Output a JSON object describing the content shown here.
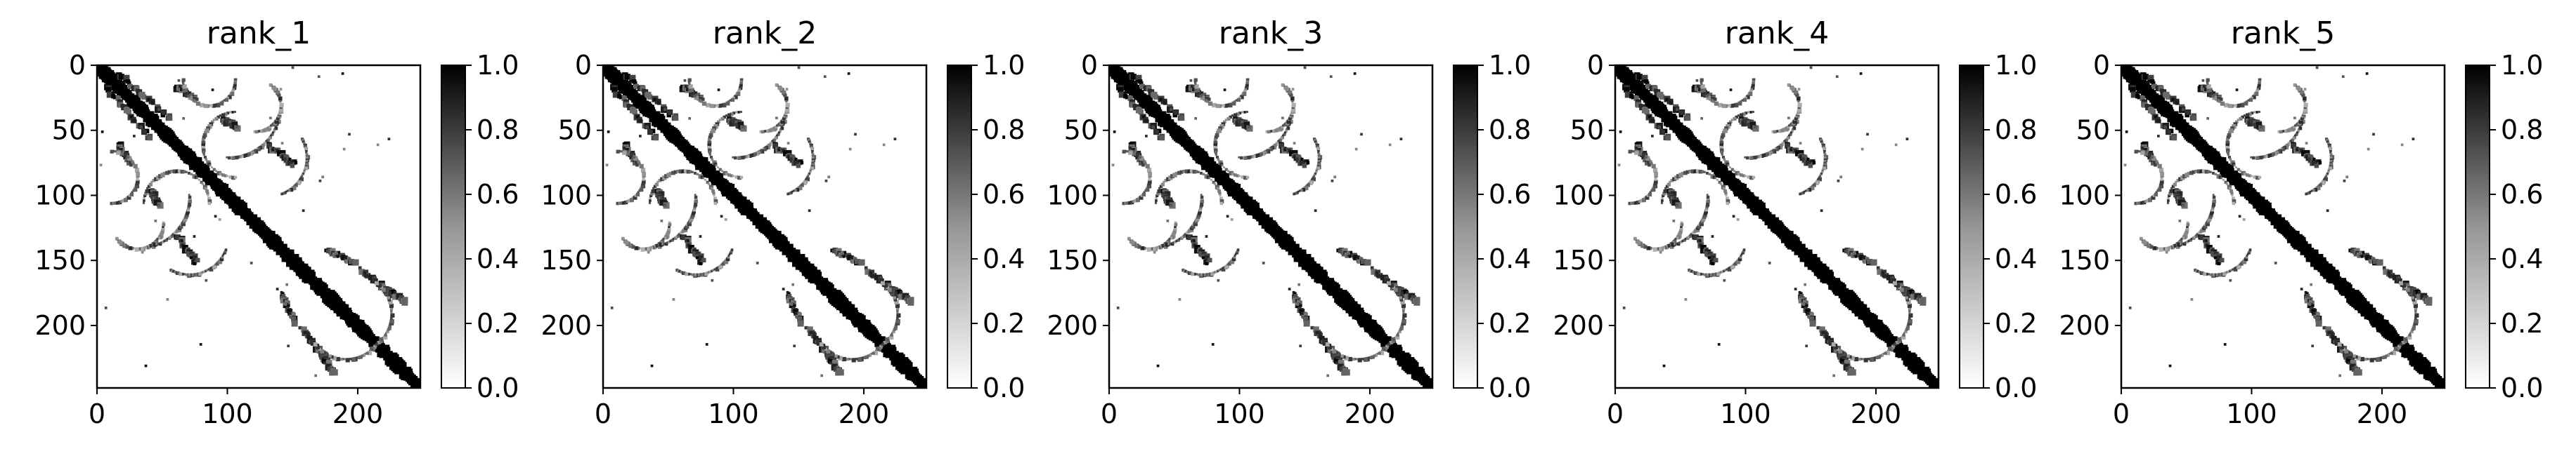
{
  "chart_data": [
    {
      "type": "heatmap",
      "title": "rank_1",
      "x_range": [
        0,
        248
      ],
      "y_range": [
        0,
        248
      ],
      "x_ticks": [
        "0",
        "100",
        "200"
      ],
      "y_ticks": [
        "0",
        "50",
        "100",
        "150",
        "200"
      ],
      "colorbar": {
        "range": [
          0,
          1
        ],
        "ticks": [
          "0.0",
          "0.2",
          "0.4",
          "0.6",
          "0.8",
          "1.0"
        ],
        "colormap": "Greys"
      }
    },
    {
      "type": "heatmap",
      "title": "rank_2",
      "x_range": [
        0,
        248
      ],
      "y_range": [
        0,
        248
      ],
      "x_ticks": [
        "0",
        "100",
        "200"
      ],
      "y_ticks": [
        "0",
        "50",
        "100",
        "150",
        "200"
      ],
      "colorbar": {
        "range": [
          0,
          1
        ],
        "ticks": [
          "0.0",
          "0.2",
          "0.4",
          "0.6",
          "0.8",
          "1.0"
        ],
        "colormap": "Greys"
      }
    },
    {
      "type": "heatmap",
      "title": "rank_3",
      "x_range": [
        0,
        248
      ],
      "y_range": [
        0,
        248
      ],
      "x_ticks": [
        "0",
        "100",
        "200"
      ],
      "y_ticks": [
        "0",
        "50",
        "100",
        "150",
        "200"
      ],
      "colorbar": {
        "range": [
          0,
          1
        ],
        "ticks": [
          "0.0",
          "0.2",
          "0.4",
          "0.6",
          "0.8",
          "1.0"
        ],
        "colormap": "Greys"
      }
    },
    {
      "type": "heatmap",
      "title": "rank_4",
      "x_range": [
        0,
        248
      ],
      "y_range": [
        0,
        248
      ],
      "x_ticks": [
        "0",
        "100",
        "200"
      ],
      "y_ticks": [
        "0",
        "50",
        "100",
        "150",
        "200"
      ],
      "colorbar": {
        "range": [
          0,
          1
        ],
        "ticks": [
          "0.0",
          "0.2",
          "0.4",
          "0.6",
          "0.8",
          "1.0"
        ],
        "colormap": "Greys"
      }
    },
    {
      "type": "heatmap",
      "title": "rank_5",
      "x_range": [
        0,
        248
      ],
      "y_range": [
        0,
        248
      ],
      "x_ticks": [
        "0",
        "100",
        "200"
      ],
      "y_ticks": [
        "0",
        "50",
        "100",
        "150",
        "200"
      ],
      "colorbar": {
        "range": [
          0,
          1
        ],
        "ticks": [
          "0.0",
          "0.2",
          "0.4",
          "0.6",
          "0.8",
          "1.0"
        ],
        "colormap": "Greys"
      }
    }
  ]
}
